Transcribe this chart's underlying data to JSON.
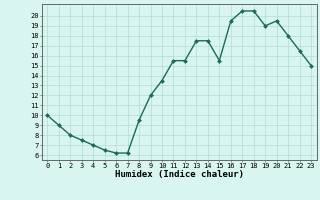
{
  "x": [
    0,
    1,
    2,
    3,
    4,
    5,
    6,
    7,
    8,
    9,
    10,
    11,
    12,
    13,
    14,
    15,
    16,
    17,
    18,
    19,
    20,
    21,
    22,
    23
  ],
  "y": [
    10,
    9,
    8,
    7.5,
    7,
    6.5,
    6.2,
    6.2,
    9.5,
    12,
    13.5,
    15.5,
    15.5,
    17.5,
    17.5,
    15.5,
    19.5,
    20.5,
    20.5,
    19,
    19.5,
    18,
    16.5,
    15
  ],
  "line_color": "#1a6b5a",
  "marker_color": "#1a6b5a",
  "bg_color": "#d8f5f0",
  "grid_color": "#b0ddd5",
  "xlabel": "Humidex (Indice chaleur)",
  "xlim": [
    -0.5,
    23.5
  ],
  "ylim": [
    5.5,
    21.2
  ],
  "yticks": [
    6,
    7,
    8,
    9,
    10,
    11,
    12,
    13,
    14,
    15,
    16,
    17,
    18,
    19,
    20
  ],
  "xticks": [
    0,
    1,
    2,
    3,
    4,
    5,
    6,
    7,
    8,
    9,
    10,
    11,
    12,
    13,
    14,
    15,
    16,
    17,
    18,
    19,
    20,
    21,
    22,
    23
  ],
  "tick_label_fontsize": 5.0,
  "xlabel_fontsize": 6.5,
  "marker_size": 2.0,
  "line_width": 1.0
}
